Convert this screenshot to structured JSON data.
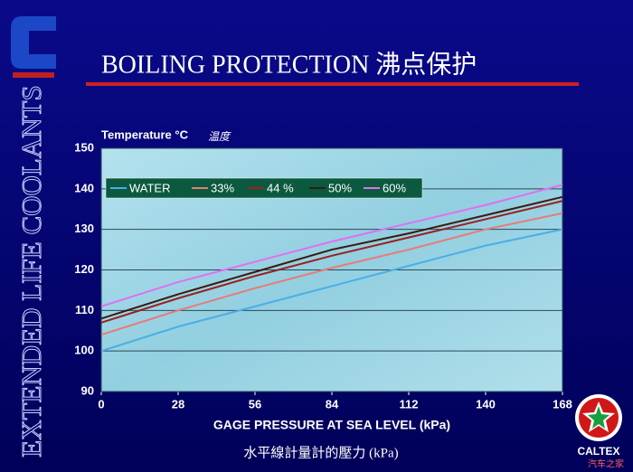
{
  "slide": {
    "title": "BOILING PROTECTION 沸点保护",
    "side_title": "EXTENDED LIFE COOLANTS",
    "brand": "CALTEX",
    "watermark": "汽车之家"
  },
  "chart_data": {
    "type": "line",
    "y_label": "Temperature °C",
    "y_label_cn": "温度",
    "x_label": "GAGE PRESSURE AT SEA LEVEL (kPa)",
    "x_label_cn": "水平線計量計的壓力 (kPa)",
    "x": [
      0,
      28,
      56,
      84,
      112,
      140,
      168
    ],
    "series": [
      {
        "name": "WATER",
        "color": "#4aaee6",
        "values": [
          100,
          106,
          111,
          116,
          121,
          126,
          130
        ]
      },
      {
        "name": "33%",
        "color": "#e87a78",
        "values": [
          104,
          110,
          115.5,
          120.5,
          125,
          130,
          134
        ]
      },
      {
        "name": "44 %",
        "color": "#9a2020",
        "values": [
          107,
          113,
          118.5,
          123.5,
          128,
          132.5,
          137
        ]
      },
      {
        "name": "50%",
        "color": "#3a1a10",
        "values": [
          108,
          114,
          119.5,
          125,
          129,
          133.5,
          138
        ]
      },
      {
        "name": "60%",
        "color": "#e070f0",
        "values": [
          111,
          117,
          122,
          127,
          131.5,
          136,
          141
        ]
      }
    ],
    "xlim": [
      0,
      168
    ],
    "xticks": [
      0,
      28,
      56,
      84,
      112,
      140,
      168
    ],
    "ylim": [
      90,
      150
    ],
    "yticks": [
      90,
      100,
      110,
      120,
      130,
      140,
      150
    ],
    "grid": true
  }
}
